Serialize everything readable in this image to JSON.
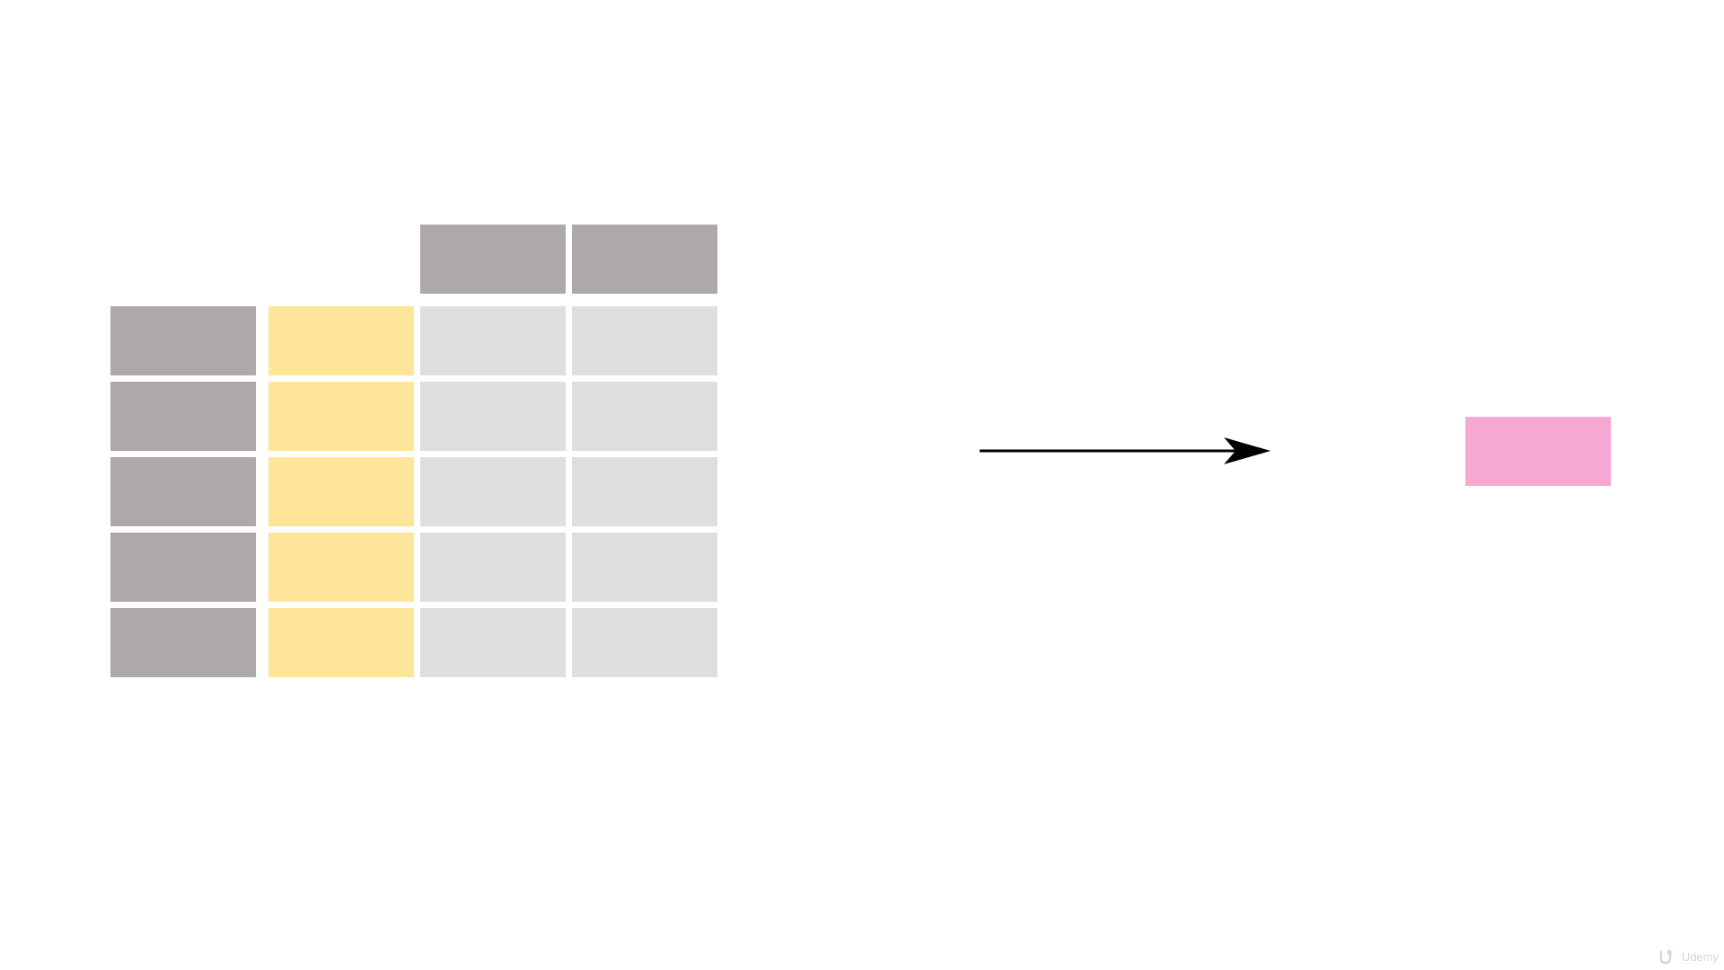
{
  "diagram": {
    "colors": {
      "background": "#ffffff",
      "header_selected": "#FFC300",
      "header": "#ADA9A9",
      "row_index": "#ADA9A9",
      "selected_column_cell": "#FEE599",
      "cell": "#DFDEDE",
      "arrow": "#000000",
      "result": "#F7A8D2"
    },
    "table": {
      "column_count": 3,
      "row_count": 5,
      "selected_column": 0
    },
    "arrow_icon": "right-arrow-icon",
    "result_icon": "result-block"
  },
  "watermark": {
    "icon": "udemy-logo-icon",
    "text": "Udemy"
  }
}
